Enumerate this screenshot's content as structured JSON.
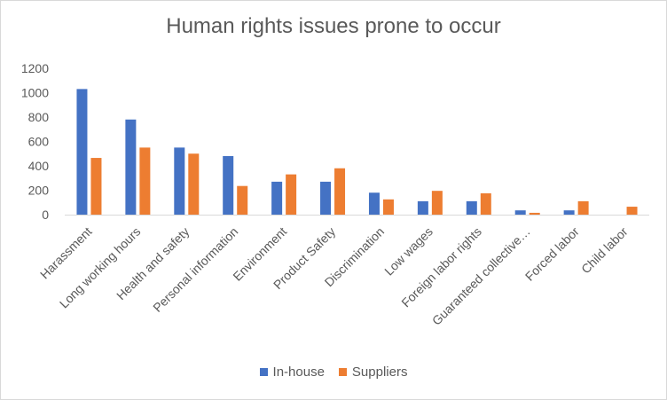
{
  "chart_data": {
    "type": "bar",
    "title": "Human rights issues prone to occur",
    "xlabel": "",
    "ylabel": "",
    "ylim": [
      0,
      1200
    ],
    "yticks": [
      0,
      200,
      400,
      600,
      800,
      1000,
      1200
    ],
    "grid": false,
    "legend_position": "bottom",
    "categories": [
      "Harassment",
      "Long working hours",
      "Health and safety",
      "Personal information",
      "Environment",
      "Product Safety",
      "Discrimination",
      "Low wages",
      "Foreign labor rights",
      "Guaranteed collective…",
      "Forced labor",
      "Child labor"
    ],
    "series": [
      {
        "name": "In-house",
        "color": "#4472c4",
        "values": [
          1030,
          780,
          550,
          480,
          270,
          270,
          180,
          110,
          110,
          35,
          35,
          0
        ]
      },
      {
        "name": "Suppliers",
        "color": "#ed7d31",
        "values": [
          465,
          550,
          500,
          235,
          330,
          380,
          125,
          195,
          175,
          15,
          110,
          65
        ]
      }
    ]
  }
}
